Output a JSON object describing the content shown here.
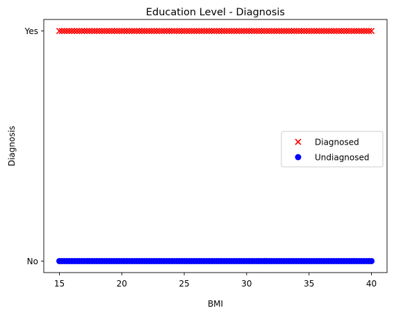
{
  "chart_data": {
    "type": "scatter",
    "title": "Education Level - Diagnosis",
    "xlabel": "BMI",
    "ylabel": "Diagnosis",
    "xlim": [
      13.75,
      41.25
    ],
    "ylim": [
      -0.05,
      1.05
    ],
    "x_ticks": [
      15,
      20,
      25,
      30,
      35,
      40
    ],
    "y_ticks": [
      0,
      1
    ],
    "y_tick_labels": [
      "No",
      "Yes"
    ],
    "grid": false,
    "legend_position": "center-right",
    "series": [
      {
        "name": "Diagnosed",
        "marker": "x",
        "color": "#ff0000",
        "y": 1,
        "x_range": [
          15,
          40
        ],
        "x": [
          15.0,
          15.2,
          15.4,
          15.6,
          15.8,
          16.0,
          16.2,
          16.4,
          16.6,
          16.8,
          17.0,
          17.2,
          17.4,
          17.6,
          17.8,
          18.0,
          18.2,
          18.4,
          18.6,
          18.8,
          19.0,
          19.2,
          19.4,
          19.6,
          19.8,
          20.0,
          20.2,
          20.4,
          20.6,
          20.8,
          21.0,
          21.2,
          21.4,
          21.6,
          21.8,
          22.0,
          22.2,
          22.4,
          22.6,
          22.8,
          23.0,
          23.2,
          23.4,
          23.6,
          23.8,
          24.0,
          24.2,
          24.4,
          24.6,
          24.8,
          25.0,
          25.2,
          25.4,
          25.6,
          25.8,
          26.0,
          26.2,
          26.4,
          26.6,
          26.8,
          27.0,
          27.2,
          27.4,
          27.6,
          27.8,
          28.0,
          28.2,
          28.4,
          28.6,
          28.8,
          29.0,
          29.2,
          29.4,
          29.6,
          29.8,
          30.0,
          30.2,
          30.4,
          30.6,
          30.8,
          31.0,
          31.2,
          31.4,
          31.6,
          31.8,
          32.0,
          32.2,
          32.4,
          32.6,
          32.8,
          33.0,
          33.2,
          33.4,
          33.6,
          33.8,
          34.0,
          34.2,
          34.4,
          34.6,
          34.8,
          35.0,
          35.2,
          35.4,
          35.6,
          35.8,
          36.0,
          36.2,
          36.4,
          36.6,
          36.8,
          37.0,
          37.2,
          37.4,
          37.6,
          37.8,
          38.0,
          38.2,
          38.4,
          38.6,
          38.8,
          39.0,
          39.2,
          39.4,
          39.6,
          39.8,
          40.0
        ]
      },
      {
        "name": "Undiagnosed",
        "marker": "o",
        "color": "#0000ff",
        "y": 0,
        "x_range": [
          15,
          40
        ],
        "x": [
          15.0,
          15.2,
          15.4,
          15.6,
          15.8,
          16.0,
          16.2,
          16.4,
          16.6,
          16.8,
          17.0,
          17.2,
          17.4,
          17.6,
          17.8,
          18.0,
          18.2,
          18.4,
          18.6,
          18.8,
          19.0,
          19.2,
          19.4,
          19.6,
          19.8,
          20.0,
          20.2,
          20.4,
          20.6,
          20.8,
          21.0,
          21.2,
          21.4,
          21.6,
          21.8,
          22.0,
          22.2,
          22.4,
          22.6,
          22.8,
          23.0,
          23.2,
          23.4,
          23.6,
          23.8,
          24.0,
          24.2,
          24.4,
          24.6,
          24.8,
          25.0,
          25.2,
          25.4,
          25.6,
          25.8,
          26.0,
          26.2,
          26.4,
          26.6,
          26.8,
          27.0,
          27.2,
          27.4,
          27.6,
          27.8,
          28.0,
          28.2,
          28.4,
          28.6,
          28.8,
          29.0,
          29.2,
          29.4,
          29.6,
          29.8,
          30.0,
          30.2,
          30.4,
          30.6,
          30.8,
          31.0,
          31.2,
          31.4,
          31.6,
          31.8,
          32.0,
          32.2,
          32.4,
          32.6,
          32.8,
          33.0,
          33.2,
          33.4,
          33.6,
          33.8,
          34.0,
          34.2,
          34.4,
          34.6,
          34.8,
          35.0,
          35.2,
          35.4,
          35.6,
          35.8,
          36.0,
          36.2,
          36.4,
          36.6,
          36.8,
          37.0,
          37.2,
          37.4,
          37.6,
          37.8,
          38.0,
          38.2,
          38.4,
          38.6,
          38.8,
          39.0,
          39.2,
          39.4,
          39.6,
          39.8,
          40.0
        ]
      }
    ]
  }
}
